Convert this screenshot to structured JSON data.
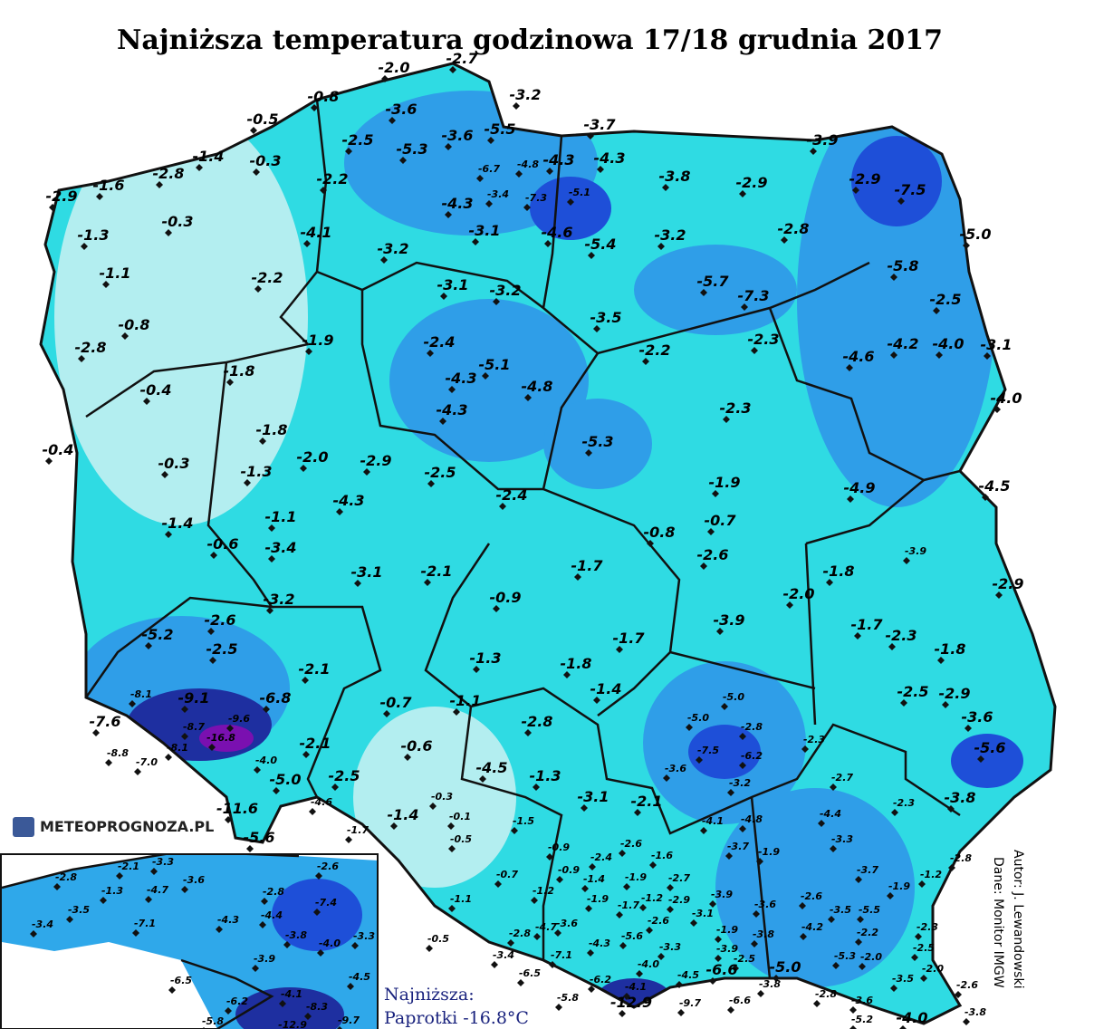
{
  "title": "Najniższa temperatura godzinowa 17/18 grudnia 2017",
  "logo": "METEOPROGNOZA.PL",
  "credits": [
    "Autor: J. Lewandowski",
    "Dane: Monitor IMGW"
  ],
  "note": [
    "Najniższa:",
    "Paprotki -16.8°C"
  ],
  "stations": [
    "-2.0",
    "-2.7",
    "-3.2",
    "-0.8",
    "-0.5",
    "-3.6",
    "-3.6",
    "-5.5",
    "-3.7",
    "-3.9",
    "-2.5",
    "-5.3",
    "-6.7",
    "-4.8",
    "-4.3",
    "-4.3",
    "-1.4",
    "-0.3",
    "-2.8",
    "-1.6",
    "-2.9",
    "-2.2",
    "-3.8",
    "-2.9",
    "-2.9",
    "-7.5",
    "-4.3",
    "-3.4",
    "-7.3",
    "-5.1",
    "-3.1",
    "-4.6",
    "-5.4",
    "-0.3",
    "-1.3",
    "-4.1",
    "-3.2",
    "-3.2",
    "-2.8",
    "-5.0",
    "-1.1",
    "-2.2",
    "-3.1",
    "-3.2",
    "-5.7",
    "-7.3",
    "-5.8",
    "-2.5",
    "-0.8",
    "-3.5",
    "-1.9",
    "-2.4",
    "-5.1",
    "-2.2",
    "-2.3",
    "-4.6",
    "-4.2",
    "-4.0",
    "-3.1",
    "-2.8",
    "-1.8",
    "-4.3",
    "-4.8",
    "-0.4",
    "-4.0",
    "-2.3",
    "-4.3",
    "-1.8",
    "-5.3",
    "-0.4",
    "-2.0",
    "-2.9",
    "-0.3",
    "-1.3",
    "-2.5",
    "-1.9",
    "-4.9",
    "-4.5",
    "-4.3",
    "-2.4",
    "-1.1",
    "-0.7",
    "-0.8",
    "-1.4",
    "-0.6",
    "-3.4",
    "-3.9",
    "-2.6",
    "-3.1",
    "-2.1",
    "-1.7",
    "-1.8",
    "-2.9",
    "-2.0",
    "-3.2",
    "-2.6",
    "-0.9",
    "-3.9",
    "-1.7",
    "-2.3",
    "-5.2",
    "-2.5",
    "-1.7",
    "-1.8",
    "-1.3",
    "-1.8",
    "-2.1",
    "-1.4",
    "-0.7",
    "-1.1",
    "-2.5",
    "-2.9",
    "-9.1",
    "-6.8",
    "-8.1",
    "-7.6",
    "-3.6",
    "-5.0",
    "-5.0",
    "-2.8",
    "-2.8",
    "-8.7",
    "-9.6",
    "-16.8",
    "-8.8",
    "-7.0",
    "-8.1",
    "-2.1",
    "-0.6",
    "-7.5",
    "-6.2",
    "-2.3",
    "-5.6",
    "-4.0",
    "-3.6",
    "-4.5",
    "-1.3",
    "-2.5",
    "-5.0",
    "-2.7",
    "-3.2",
    "-3.1",
    "-2.1",
    "-4.6",
    "-0.3",
    "-11.6",
    "-4.8",
    "-4.4",
    "-2.3",
    "-3.8",
    "-1.7",
    "-1.4",
    "-0.1",
    "-1.5",
    "-4.1",
    "-5.6",
    "-0.5",
    "-3.3",
    "-0.9",
    "-2.6",
    "-1.6",
    "-3.7",
    "-1.9",
    "-2.8",
    "-2.4",
    "-1.9",
    "-0.7",
    "-0.9",
    "-1.4",
    "-2.7",
    "-3.7",
    "-1.2",
    "-1.9",
    "-1.1",
    "-1.2",
    "-1.9",
    "-1.7",
    "-1.2",
    "-2.9",
    "-3.9",
    "-2.6",
    "-3.6",
    "-3.5",
    "-5.5",
    "-3.1",
    "-3.6",
    "-4.7",
    "-2.8",
    "-2.6",
    "-5.6",
    "-1.9",
    "-3.8",
    "-4.2",
    "-2.2",
    "-2.3",
    "-0.5",
    "-4.3",
    "-3.3",
    "-3.9",
    "-2.5",
    "-2.5",
    "-3.4",
    "-7.1",
    "-4.0",
    "-6.6",
    "-5.3",
    "-2.0",
    "-2.0",
    "-5.0",
    "-6.5",
    "-6.2",
    "-4.1",
    "-4.5",
    "-3.5",
    "-2.6",
    "-3.8",
    "-5.8",
    "-12.9",
    "-9.7",
    "-6.6",
    "-2.8",
    "-3.6",
    "-3.8",
    "-5.2",
    "-4.0"
  ],
  "inset_stations": [
    "-2.8",
    "-2.1",
    "-3.3",
    "-2.6",
    "-1.3",
    "-4.7",
    "-3.6",
    "-2.8",
    "-3.5",
    "-7.1",
    "-4.3",
    "-4.4",
    "-7.4",
    "-3.4",
    "-3.8",
    "-4.0",
    "-3.3",
    "-3.9",
    "-6.5",
    "-4.5",
    "-4.1",
    "-6.2",
    "-8.3",
    "-9.7",
    "-5.8",
    "-12.9"
  ]
}
